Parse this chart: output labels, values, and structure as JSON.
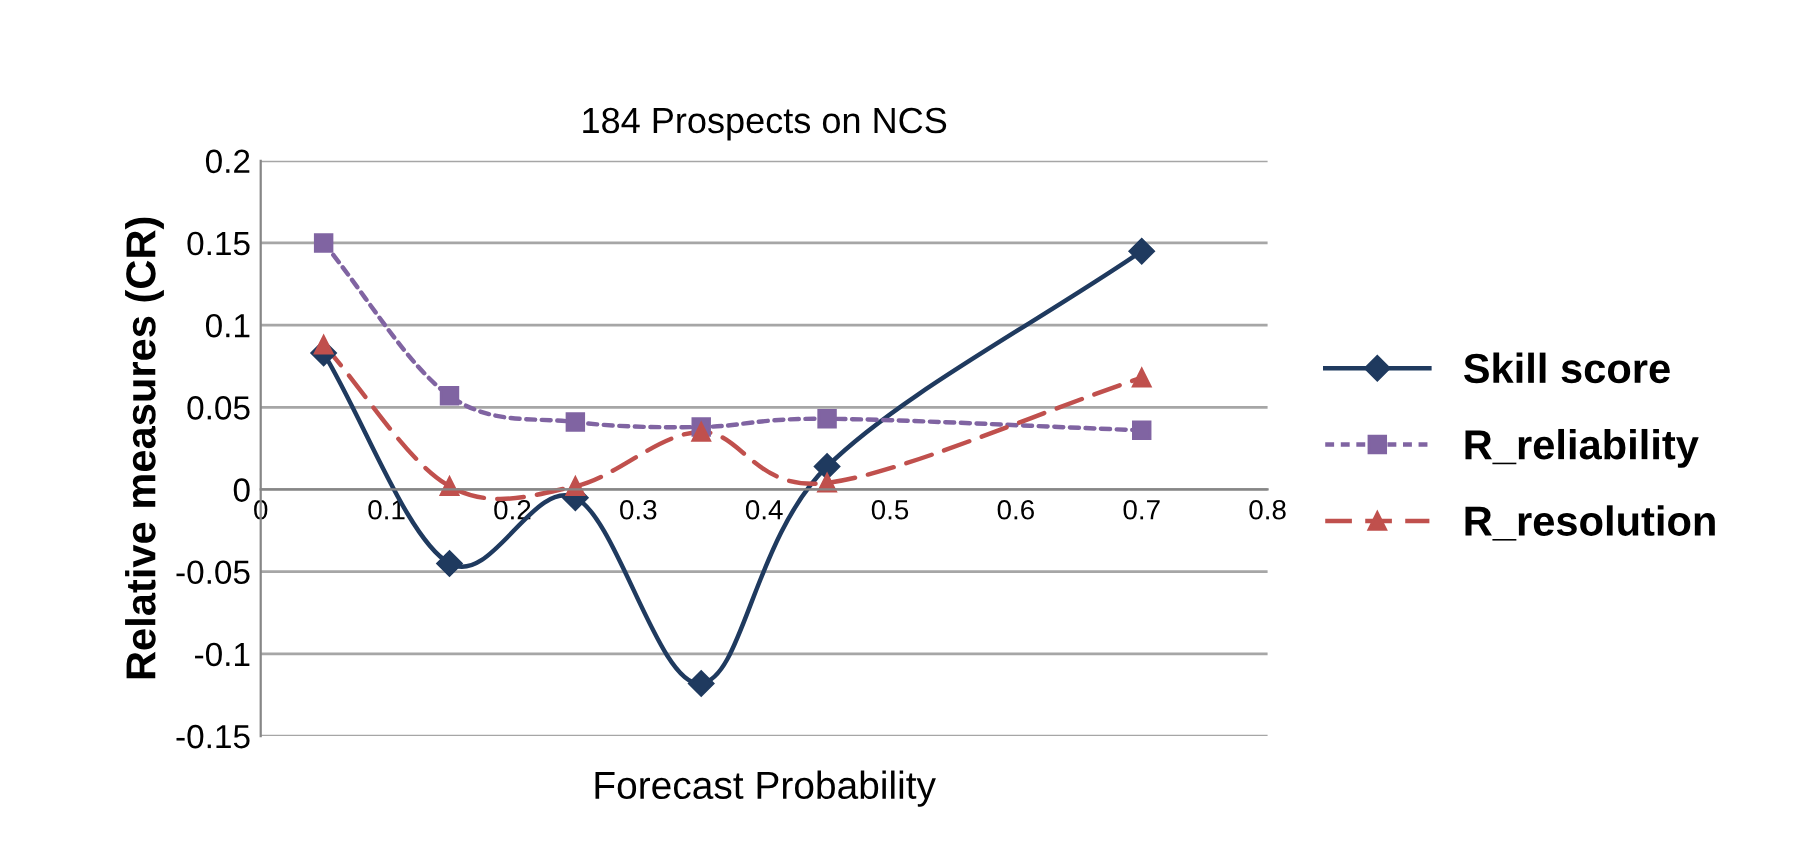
{
  "chart_data": {
    "type": "line",
    "title": "184 Prospects on NCS",
    "xlabel": "Forecast Probability",
    "ylabel": "Relative measures (CR)",
    "x": [
      0.05,
      0.15,
      0.25,
      0.35,
      0.45,
      0.7
    ],
    "series": [
      {
        "name": "Skill score",
        "color": "#1f3a5f",
        "values": [
          0.083,
          -0.045,
          -0.005,
          -0.118,
          0.014,
          0.145
        ],
        "marker": "diamond",
        "line_style": "solid"
      },
      {
        "name": "R_reliability",
        "color": "#8064a2",
        "values": [
          0.15,
          0.057,
          0.041,
          0.038,
          0.043,
          0.036
        ],
        "marker": "square",
        "line_style": "dotted"
      },
      {
        "name": "R_resolution",
        "color": "#c0504d",
        "values": [
          0.088,
          0.002,
          0.002,
          0.035,
          0.004,
          0.068
        ],
        "marker": "triangle",
        "line_style": "dashed"
      }
    ],
    "xlim": [
      0,
      0.8
    ],
    "xticks": [
      0,
      0.1,
      0.2,
      0.3,
      0.4,
      0.5,
      0.6,
      0.7,
      0.8
    ],
    "ylim": [
      -0.15,
      0.2
    ],
    "yticks": [
      -0.15,
      -0.1,
      -0.05,
      0,
      0.05,
      0.1,
      0.15,
      0.2
    ],
    "grid": "y",
    "legend": "right"
  }
}
